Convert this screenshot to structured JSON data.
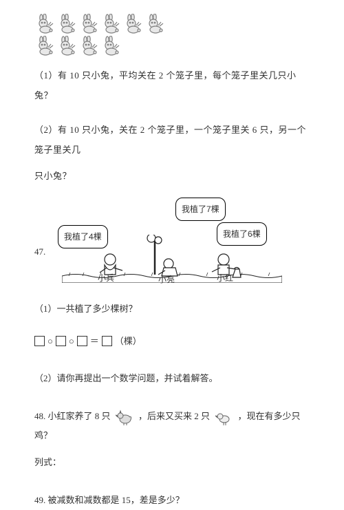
{
  "rabbits": {
    "row1_count": 6,
    "row2_count": 4,
    "stroke": "#808080",
    "fill": "#e8e8e8"
  },
  "q1": "（1）有 10 只小兔，平均关在 2 个笼子里，每个笼子里关几只小兔？",
  "q2_line1": "（2）有 10 只小兔，关在 2 个笼子里，一个笼子里关 6 只，另一个笼子里关几",
  "q2_line2": "只小兔？",
  "illustration": {
    "speech_left": "我植了4棵",
    "speech_mid": "我植了7棵",
    "speech_right": "我植了6棵",
    "name_left": "小兵",
    "name_mid": "小亮",
    "name_right": "小红",
    "stroke": "#222222"
  },
  "q47_num": "47.",
  "q47_1": "（1）一共植了多少棵树？",
  "q47_formula_unit": "（棵）",
  "q47_2": "（2）请你再提出一个数学问题，并试着解答。",
  "q48_part1": "48. 小红家养了 8 只",
  "q48_part2": "，后来又买来 2 只",
  "q48_part3": "，现在有多少只鸡？",
  "q48_lieshi": "列式：",
  "q49": "49. 被减数和减数都是 15，差是多少？",
  "chick_stroke": "#666666",
  "chick_fill": "#dddddd"
}
